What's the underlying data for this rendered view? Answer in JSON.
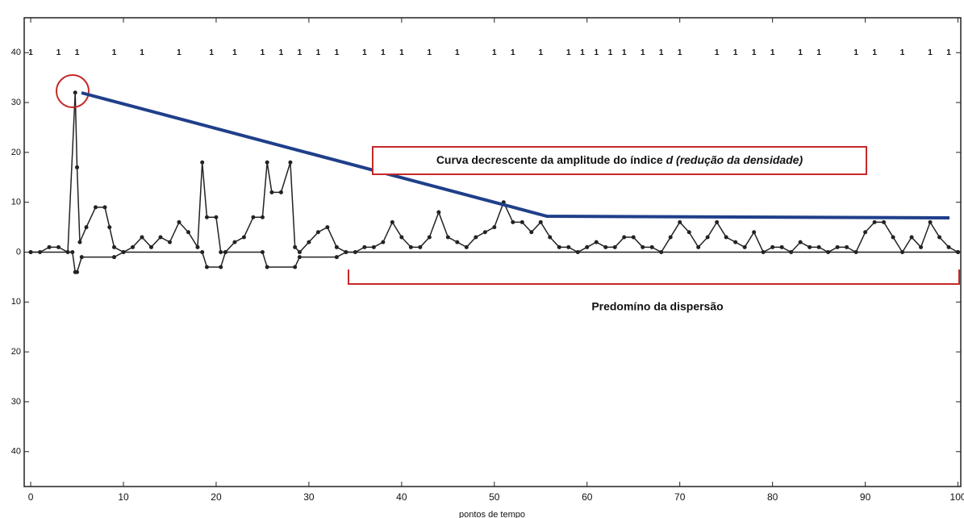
{
  "chart_data": {
    "type": "line",
    "x_label": "pontos de tempo",
    "xlim": [
      -0.7,
      100.3
    ],
    "ylim": [
      -47,
      47
    ],
    "xticks": [
      0,
      10,
      20,
      30,
      40,
      50,
      60,
      70,
      80,
      90,
      100
    ],
    "yticks": [
      {
        "value": -40,
        "label": "40"
      },
      {
        "value": -30,
        "label": "30"
      },
      {
        "value": -20,
        "label": "20"
      },
      {
        "value": -10,
        "label": "10"
      },
      0,
      10,
      20,
      30,
      40
    ],
    "series": [
      {
        "color": "#222222",
        "x": [
          0,
          1,
          2,
          3,
          4,
          4.8,
          5,
          5.3,
          6,
          7,
          8,
          8.5,
          9,
          10,
          11,
          12,
          13,
          14,
          15,
          16,
          17,
          18,
          18.5,
          19,
          20,
          20.5,
          21,
          22,
          23,
          24,
          25,
          25.5,
          26,
          27,
          28,
          28.5,
          29,
          30,
          31,
          32,
          33,
          34,
          35,
          36,
          37,
          38,
          39,
          40,
          41,
          42,
          43,
          44,
          45,
          46,
          47,
          48,
          49,
          50,
          51,
          52,
          53,
          54,
          55,
          56,
          57,
          58,
          59,
          60,
          61,
          62,
          63,
          64,
          65,
          66,
          67,
          68,
          69,
          70,
          71,
          72,
          73,
          74,
          75,
          76,
          77,
          78,
          79,
          80,
          81,
          82,
          83,
          84,
          85,
          86,
          87,
          88,
          89,
          90,
          91,
          92,
          93,
          94,
          95,
          96,
          97,
          98,
          99,
          100
        ],
        "values": [
          0,
          0,
          1,
          1,
          0,
          32,
          17,
          2,
          5,
          9,
          9,
          5,
          1,
          0,
          1,
          3,
          1,
          3,
          2,
          6,
          4,
          1,
          18,
          7,
          7,
          0,
          0,
          2,
          3,
          7,
          7,
          18,
          12,
          12,
          18,
          1,
          0,
          2,
          4,
          5,
          1,
          0,
          0,
          1,
          1,
          2,
          6,
          3,
          1,
          1,
          3,
          8,
          3,
          2,
          1,
          3,
          4,
          5,
          10,
          6,
          6,
          4,
          6,
          3,
          1,
          1,
          0,
          1,
          2,
          1,
          1,
          3,
          3,
          1,
          1,
          0,
          3,
          6,
          4,
          1,
          3,
          6,
          3,
          2,
          1,
          4,
          0,
          1,
          1,
          0,
          2,
          1,
          1,
          0,
          1,
          1,
          0,
          4,
          6,
          6,
          3,
          0,
          3,
          1,
          6,
          3,
          1,
          0
        ]
      },
      {
        "color": "#222222",
        "x": [
          0,
          4.5,
          4.8,
          5,
          5.5,
          9,
          10,
          18.5,
          19,
          20.5,
          21,
          25,
          25.5,
          28.5,
          29,
          33,
          34,
          100
        ],
        "values": [
          0,
          0,
          -4,
          -4,
          -1,
          -1,
          0,
          0,
          -3,
          -3,
          0,
          0,
          -3,
          -3,
          -1,
          -1,
          0,
          0
        ]
      }
    ],
    "top_labels": {
      "label": "1",
      "y": 40,
      "x": [
        0,
        3,
        5,
        9,
        12,
        16,
        19.5,
        22,
        25,
        27,
        29,
        31,
        33,
        36,
        38,
        40,
        43,
        46,
        50,
        52,
        55,
        58,
        59.5,
        61,
        62.5,
        64,
        66,
        68,
        70,
        74,
        76,
        78,
        80,
        83,
        85,
        89,
        91,
        94,
        97,
        99
      ]
    },
    "annotations": {
      "box_text": "Curva decrescente da amplitude do índice",
      "box_symbol": "d",
      "box_note": "(redução da densidade)",
      "bracket_text": "Predomíno da dispersão"
    }
  }
}
